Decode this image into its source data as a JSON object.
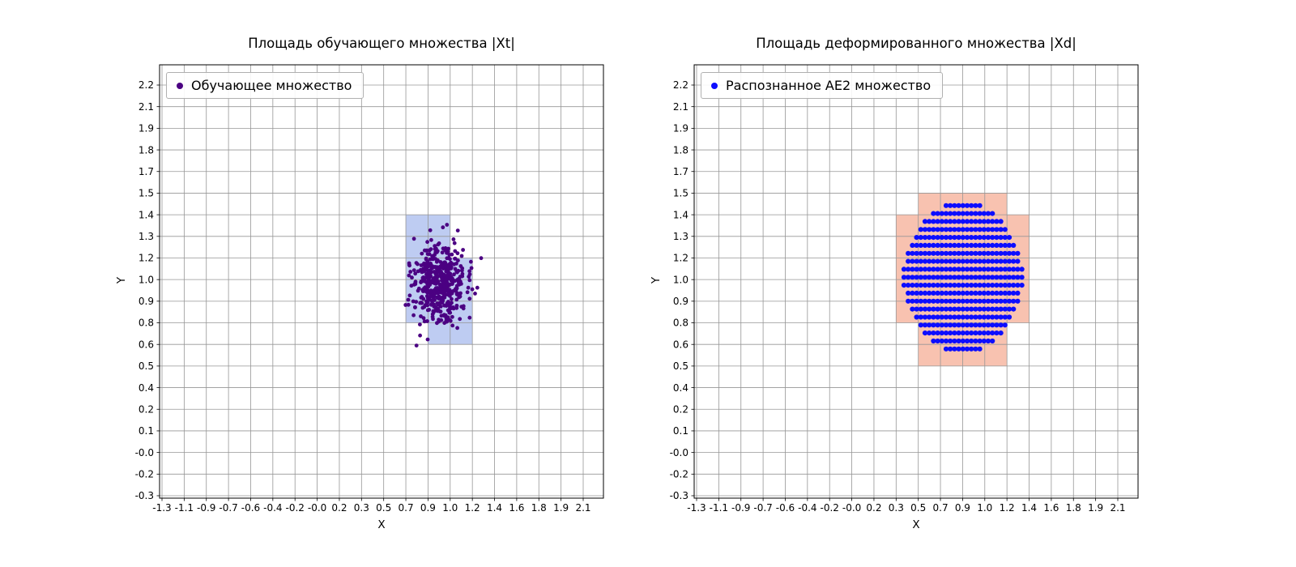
{
  "page": {
    "background": "#ffffff"
  },
  "chart_data": [
    {
      "type": "scatter",
      "title": "Площадь обучающего множества |Xt|",
      "xlabel": "X",
      "ylabel": "Y",
      "grid": true,
      "x_range": [
        -1.3,
        2.1
      ],
      "y_range": [
        -0.3,
        2.2
      ],
      "x_ticks": [
        "-1.3",
        "-1.1",
        "-0.9",
        "-0.7",
        "-0.6",
        "-0.4",
        "-0.2",
        "-0.0",
        "0.2",
        "0.3",
        "0.5",
        "0.7",
        "0.9",
        "1.0",
        "1.2",
        "1.4",
        "1.6",
        "1.8",
        "1.9",
        "2.1"
      ],
      "y_ticks": [
        "-0.3",
        "-0.2",
        "-0.0",
        "0.1",
        "0.2",
        "0.4",
        "0.5",
        "0.6",
        "0.8",
        "0.9",
        "1.0",
        "1.2",
        "1.3",
        "1.4",
        "1.5",
        "1.7",
        "1.8",
        "1.9",
        "2.1",
        "2.2"
      ],
      "legend": {
        "position": "upper left",
        "entries": [
          {
            "label": "Обучающее множество",
            "marker": "dot",
            "color": "#4b0082"
          }
        ]
      },
      "highlight_cells": {
        "fill": "#6f8fe3",
        "opacity": 0.45,
        "cells": [
          {
            "x": [
              0.7,
              1.0
            ],
            "y": [
              1.3,
              1.4
            ]
          },
          {
            "x": [
              0.7,
              1.0
            ],
            "y": [
              0.8,
              1.3
            ]
          },
          {
            "x": [
              1.0,
              1.2
            ],
            "y": [
              0.8,
              1.2
            ]
          },
          {
            "x": [
              0.9,
              1.2
            ],
            "y": [
              0.6,
              0.8
            ]
          }
        ]
      },
      "series": [
        {
          "name": "Обучающее множество",
          "color": "#4b0082",
          "marker_radius": 2.4,
          "points_spec": {
            "kind": "gaussian-cluster",
            "center": [
              0.94,
              0.99
            ],
            "std": [
              0.105,
              0.125
            ],
            "count": 500,
            "seed": 1337
          }
        }
      ]
    },
    {
      "type": "scatter",
      "title": "Площадь деформированного множества |Xd|",
      "xlabel": "X",
      "ylabel": "Y",
      "grid": true,
      "x_range": [
        -1.3,
        2.1
      ],
      "y_range": [
        -0.3,
        2.2
      ],
      "x_ticks": [
        "-1.3",
        "-1.1",
        "-0.9",
        "-0.7",
        "-0.6",
        "-0.4",
        "-0.2",
        "-0.0",
        "0.2",
        "0.3",
        "0.5",
        "0.7",
        "0.9",
        "1.0",
        "1.2",
        "1.4",
        "1.6",
        "1.8",
        "1.9",
        "2.1"
      ],
      "y_ticks": [
        "-0.3",
        "-0.2",
        "-0.0",
        "0.1",
        "0.2",
        "0.4",
        "0.5",
        "0.6",
        "0.8",
        "0.9",
        "1.0",
        "1.2",
        "1.3",
        "1.4",
        "1.5",
        "1.7",
        "1.8",
        "1.9",
        "2.1",
        "2.2"
      ],
      "legend": {
        "position": "upper left",
        "entries": [
          {
            "label": "Распознанное AE2 множество",
            "marker": "dot",
            "color": "#0d0dff"
          }
        ]
      },
      "highlight_cells": {
        "fill": "#f07850",
        "opacity": 0.45,
        "cells": [
          {
            "x": [
              0.5,
              1.2
            ],
            "y": [
              1.4,
              1.5
            ]
          },
          {
            "x": [
              0.3,
              1.4
            ],
            "y": [
              0.8,
              1.4
            ]
          },
          {
            "x": [
              0.5,
              1.2
            ],
            "y": [
              0.5,
              0.8
            ]
          }
        ]
      },
      "series": [
        {
          "name": "Распознанное AE2 множество",
          "color": "#0d0dff",
          "marker_radius": 3.1,
          "points_spec": {
            "kind": "ellipse-grid",
            "center": [
              0.85,
              1.03
            ],
            "radius": [
              0.48,
              0.46
            ],
            "step": [
              0.034,
              0.0485
            ]
          }
        }
      ]
    }
  ],
  "style": {
    "grid_color": "#969696",
    "frame_color": "#000000",
    "tick_label_color": "#000000"
  }
}
